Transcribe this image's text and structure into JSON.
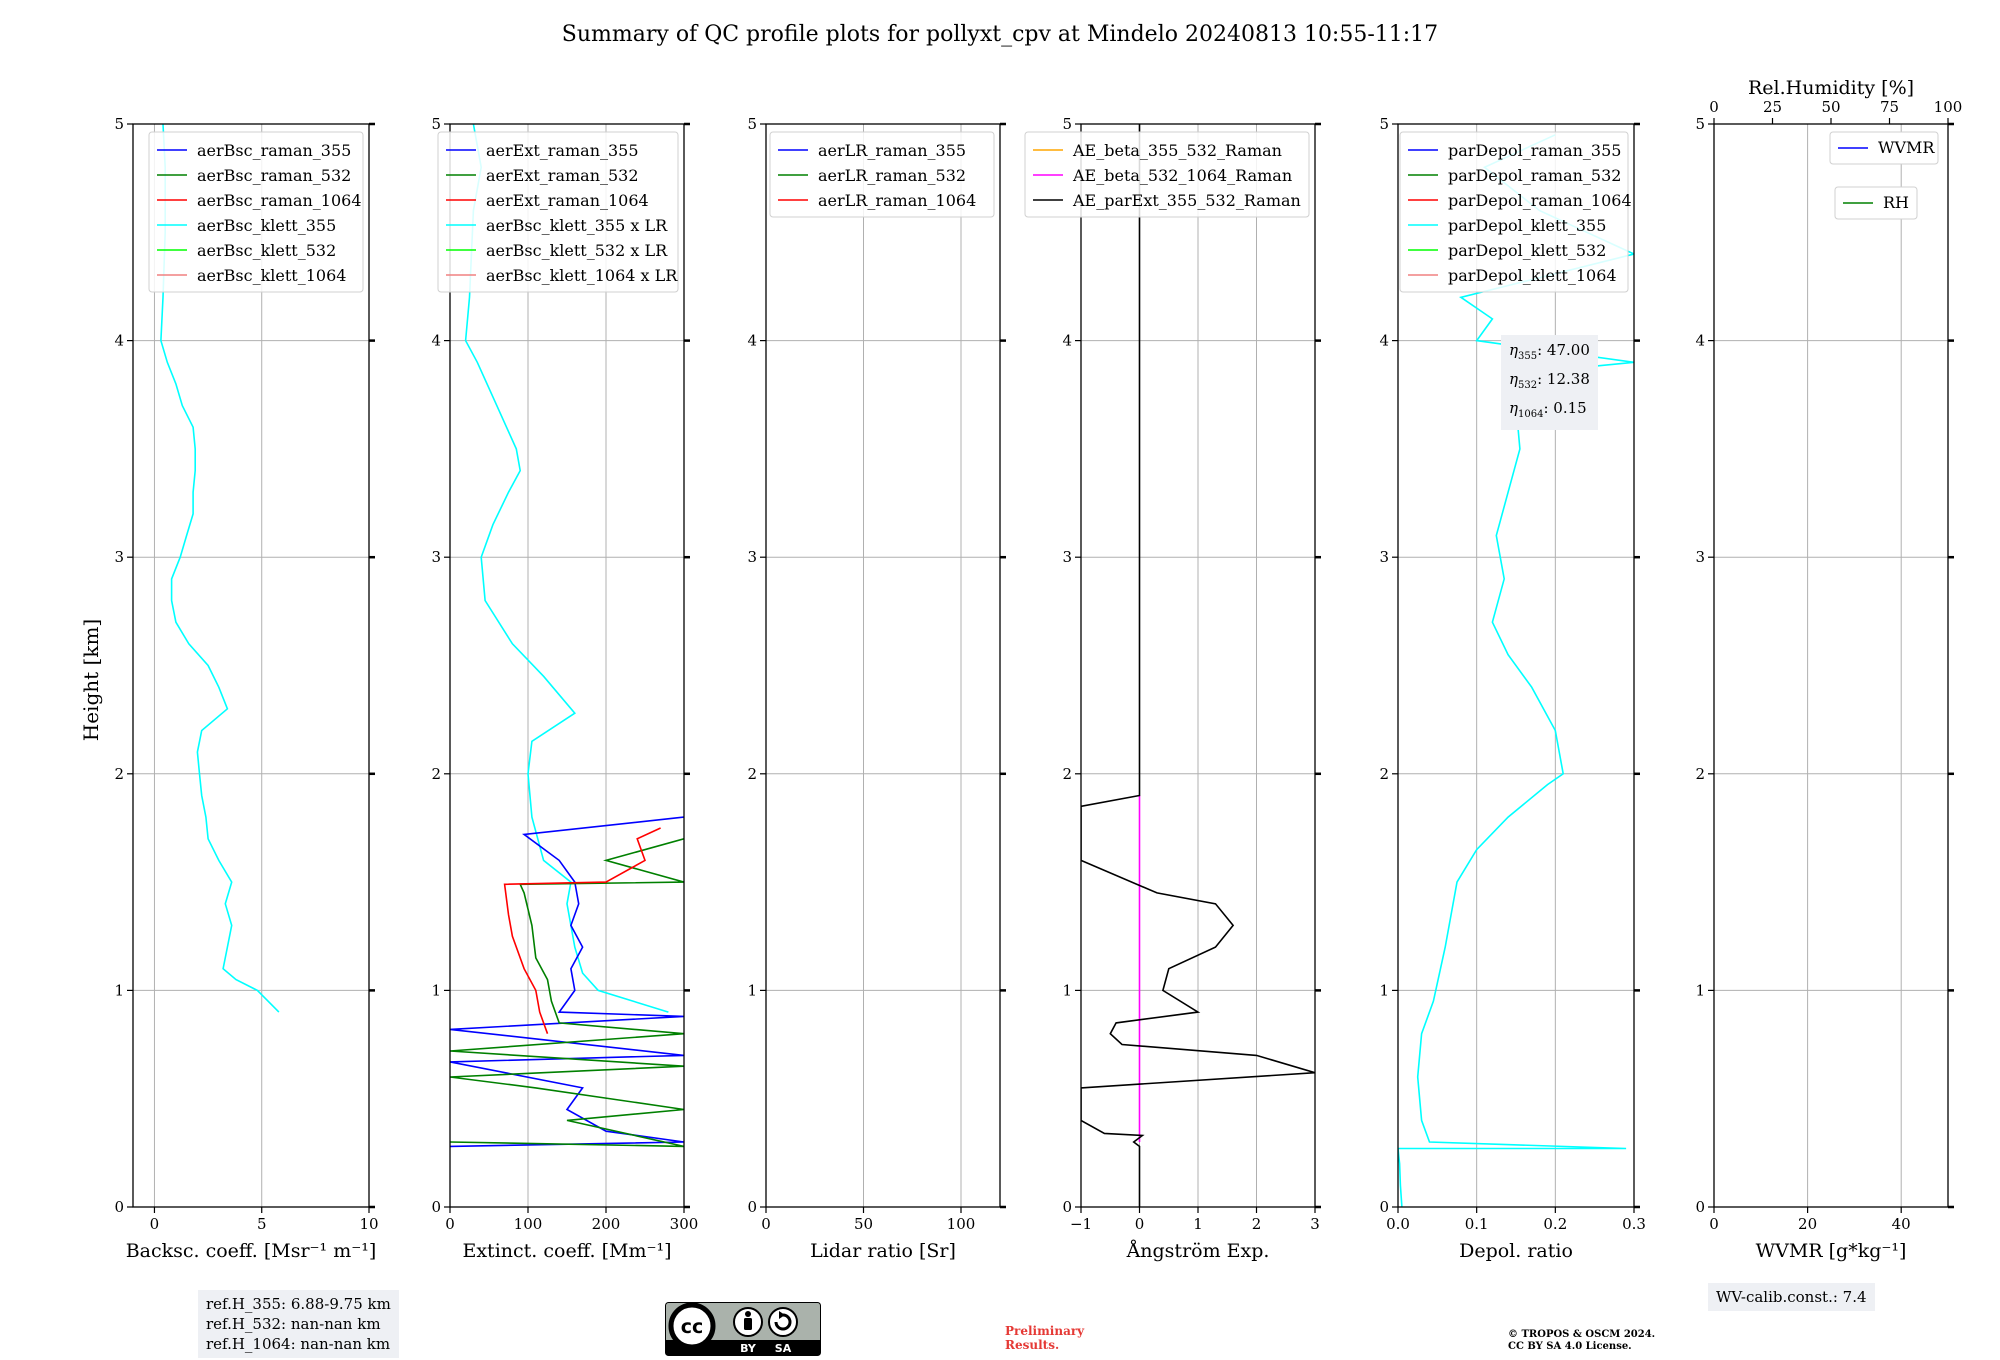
{
  "title": "Summary of QC profile plots for pollyxt_cpv at Mindelo 20240813 10:55-11:17",
  "ylabel": "Height [km]",
  "ref_heights": [
    "ref.H_355: 6.88-9.75 km",
    "ref.H_532: nan-nan km",
    "ref.H_1064: nan-nan km"
  ],
  "wv_calib": "WV-calib.const.: 7.4",
  "eta_values": [
    {
      "sym": "η",
      "sub": "355",
      "val": ": 47.00"
    },
    {
      "sym": "η",
      "sub": "532",
      "val": ": 12.38"
    },
    {
      "sym": "η",
      "sub": "1064",
      "val": ": 0.15"
    }
  ],
  "preliminary": [
    "Preliminary",
    "Results."
  ],
  "license": [
    "© TROPOS & OSCM 2024.",
    "CC BY SA 4.0 License."
  ],
  "cc_logo": {
    "main": "cc",
    "labels": [
      "BY",
      "SA"
    ]
  },
  "colors": {
    "blue": "#0000ff",
    "green": "#008000",
    "red": "#ff0000",
    "cyan": "#00ffff",
    "lime": "#00ff00",
    "salmon": "#f08080",
    "orange": "#ffa500",
    "magenta": "#ff00ff",
    "black": "#000000"
  },
  "chart_data": [
    {
      "type": "line",
      "xlabel": "Backsc. coeff. [Msr⁻¹ m⁻¹]",
      "xlim": [
        -1,
        10
      ],
      "ylim": [
        0,
        5
      ],
      "xticks": [
        0,
        5,
        10
      ],
      "xticklabels": [
        "0",
        "5",
        "10"
      ],
      "yticks": [
        0,
        1,
        2,
        3,
        4,
        5
      ],
      "grid": true,
      "legend": "top-right",
      "legend_entries": [
        {
          "label": "aerBsc_raman_355",
          "color": "blue"
        },
        {
          "label": "aerBsc_raman_532",
          "color": "green"
        },
        {
          "label": "aerBsc_raman_1064",
          "color": "red"
        },
        {
          "label": "aerBsc_klett_355",
          "color": "cyan"
        },
        {
          "label": "aerBsc_klett_532",
          "color": "lime"
        },
        {
          "label": "aerBsc_klett_1064",
          "color": "salmon"
        }
      ],
      "series": [
        {
          "name": "aerBsc_klett_355",
          "color": "cyan",
          "points": [
            [
              5.8,
              0.9
            ],
            [
              4.8,
              1.0
            ],
            [
              3.8,
              1.05
            ],
            [
              3.2,
              1.1
            ],
            [
              3.4,
              1.2
            ],
            [
              3.6,
              1.3
            ],
            [
              3.3,
              1.4
            ],
            [
              3.6,
              1.5
            ],
            [
              3.0,
              1.6
            ],
            [
              2.5,
              1.7
            ],
            [
              2.4,
              1.8
            ],
            [
              2.2,
              1.9
            ],
            [
              2.1,
              2.0
            ],
            [
              2.0,
              2.1
            ],
            [
              2.2,
              2.2
            ],
            [
              3.4,
              2.3
            ],
            [
              3.0,
              2.4
            ],
            [
              2.5,
              2.5
            ],
            [
              1.6,
              2.6
            ],
            [
              1.0,
              2.7
            ],
            [
              0.8,
              2.8
            ],
            [
              0.8,
              2.9
            ],
            [
              1.2,
              3.0
            ],
            [
              1.5,
              3.1
            ],
            [
              1.8,
              3.2
            ],
            [
              1.8,
              3.3
            ],
            [
              1.9,
              3.4
            ],
            [
              1.9,
              3.5
            ],
            [
              1.8,
              3.6
            ],
            [
              1.3,
              3.7
            ],
            [
              1.0,
              3.8
            ],
            [
              0.6,
              3.9
            ],
            [
              0.3,
              4.0
            ],
            [
              0.4,
              4.2
            ],
            [
              0.5,
              4.5
            ],
            [
              0.5,
              4.8
            ],
            [
              0.4,
              5.0
            ]
          ]
        }
      ]
    },
    {
      "type": "line",
      "xlabel": "Extinct. coeff. [Mm⁻¹]",
      "xlim": [
        0,
        300
      ],
      "ylim": [
        0,
        5
      ],
      "xticks": [
        0,
        100,
        200,
        300
      ],
      "xticklabels": [
        "0",
        "100",
        "200",
        "300"
      ],
      "yticks": [
        0,
        1,
        2,
        3,
        4,
        5
      ],
      "grid": true,
      "legend": "top-right",
      "legend_entries": [
        {
          "label": "aerExt_raman_355",
          "color": "blue"
        },
        {
          "label": "aerExt_raman_532",
          "color": "green"
        },
        {
          "label": "aerExt_raman_1064",
          "color": "red"
        },
        {
          "label": "aerBsc_klett_355 x LR",
          "color": "cyan"
        },
        {
          "label": "aerBsc_klett_532 x LR",
          "color": "lime"
        },
        {
          "label": "aerBsc_klett_1064 x LR",
          "color": "salmon"
        }
      ],
      "series": [
        {
          "name": "aerBsc_klett_355 x LR",
          "color": "cyan",
          "points": [
            [
              280,
              0.9
            ],
            [
              190,
              1.0
            ],
            [
              170,
              1.08
            ],
            [
              160,
              1.2
            ],
            [
              150,
              1.4
            ],
            [
              155,
              1.5
            ],
            [
              120,
              1.6
            ],
            [
              105,
              1.8
            ],
            [
              100,
              2.0
            ],
            [
              105,
              2.15
            ],
            [
              160,
              2.28
            ],
            [
              120,
              2.45
            ],
            [
              80,
              2.6
            ],
            [
              45,
              2.8
            ],
            [
              40,
              3.0
            ],
            [
              55,
              3.15
            ],
            [
              75,
              3.3
            ],
            [
              90,
              3.4
            ],
            [
              85,
              3.5
            ],
            [
              60,
              3.7
            ],
            [
              35,
              3.9
            ],
            [
              20,
              4.0
            ],
            [
              25,
              4.2
            ],
            [
              30,
              4.6
            ],
            [
              40,
              4.8
            ],
            [
              30,
              5.0
            ]
          ]
        },
        {
          "name": "aerExt_raman_355",
          "color": "blue",
          "points": [
            [
              0,
              0.28
            ],
            [
              300,
              0.3
            ],
            [
              200,
              0.35
            ],
            [
              150,
              0.45
            ],
            [
              170,
              0.55
            ],
            [
              0,
              0.67
            ],
            [
              300,
              0.7
            ],
            [
              0,
              0.82
            ],
            [
              300,
              0.88
            ],
            [
              140,
              0.9
            ],
            [
              160,
              1.0
            ],
            [
              155,
              1.1
            ],
            [
              170,
              1.2
            ],
            [
              155,
              1.3
            ],
            [
              165,
              1.4
            ],
            [
              160,
              1.5
            ],
            [
              140,
              1.6
            ],
            [
              95,
              1.72
            ],
            [
              300,
              1.8
            ]
          ]
        },
        {
          "name": "aerExt_raman_532",
          "color": "green",
          "points": [
            [
              0,
              0.3
            ],
            [
              300,
              0.28
            ],
            [
              150,
              0.4
            ],
            [
              300,
              0.45
            ],
            [
              110,
              0.55
            ],
            [
              0,
              0.6
            ],
            [
              300,
              0.65
            ],
            [
              0,
              0.72
            ],
            [
              300,
              0.8
            ],
            [
              140,
              0.85
            ],
            [
              130,
              0.95
            ],
            [
              125,
              1.05
            ],
            [
              110,
              1.15
            ],
            [
              105,
              1.3
            ],
            [
              95,
              1.45
            ],
            [
              90,
              1.49
            ],
            [
              300,
              1.5
            ],
            [
              200,
              1.6
            ],
            [
              300,
              1.7
            ]
          ]
        },
        {
          "name": "aerExt_raman_1064",
          "color": "red",
          "points": [
            [
              125,
              0.8
            ],
            [
              115,
              0.9
            ],
            [
              110,
              1.0
            ],
            [
              95,
              1.1
            ],
            [
              80,
              1.25
            ],
            [
              75,
              1.35
            ],
            [
              70,
              1.49
            ],
            [
              200,
              1.5
            ],
            [
              250,
              1.6
            ],
            [
              240,
              1.7
            ],
            [
              270,
              1.75
            ]
          ]
        }
      ]
    },
    {
      "type": "line",
      "xlabel": "Lidar ratio [Sr]",
      "xlim": [
        0,
        120
      ],
      "ylim": [
        0,
        5
      ],
      "xticks": [
        0,
        50,
        100
      ],
      "xticklabels": [
        "0",
        "50",
        "100"
      ],
      "yticks": [
        0,
        1,
        2,
        3,
        4,
        5
      ],
      "grid": true,
      "legend": "top-right",
      "legend_entries": [
        {
          "label": "aerLR_raman_355",
          "color": "blue"
        },
        {
          "label": "aerLR_raman_532",
          "color": "green"
        },
        {
          "label": "aerLR_raman_1064",
          "color": "red"
        }
      ],
      "series": []
    },
    {
      "type": "line",
      "xlabel": "Ångström Exp.",
      "xlim": [
        -1,
        3
      ],
      "ylim": [
        0,
        5
      ],
      "xticks": [
        -1,
        0,
        1,
        2,
        3
      ],
      "xticklabels": [
        "−1",
        "0",
        "1",
        "2",
        "3"
      ],
      "yticks": [
        0,
        1,
        2,
        3,
        4,
        5
      ],
      "grid": true,
      "legend": "top-right",
      "legend_entries": [
        {
          "label": "AE_beta_355_532_Raman",
          "color": "orange"
        },
        {
          "label": "AE_beta_532_1064_Raman",
          "color": "magenta"
        },
        {
          "label": "AE_parExt_355_532_Raman",
          "color": "black"
        }
      ],
      "series": [
        {
          "name": "AE_beta_532_1064_Raman",
          "color": "magenta",
          "points": [
            [
              0,
              0.3
            ],
            [
              0,
              1.9
            ]
          ]
        },
        {
          "name": "AE_parExt_355_532_Raman",
          "color": "black",
          "points": [
            [
              0,
              0.0
            ],
            [
              0,
              0.28
            ],
            [
              -0.1,
              0.3
            ],
            [
              0.05,
              0.33
            ],
            [
              -0.6,
              0.34
            ],
            [
              -1,
              0.4
            ],
            [
              -1,
              0.55
            ],
            [
              3,
              0.62
            ],
            [
              2,
              0.7
            ],
            [
              -0.3,
              0.75
            ],
            [
              -0.5,
              0.8
            ],
            [
              -0.4,
              0.85
            ],
            [
              1.0,
              0.9
            ],
            [
              0.4,
              1.0
            ],
            [
              0.5,
              1.1
            ],
            [
              1.3,
              1.2
            ],
            [
              1.6,
              1.3
            ],
            [
              1.3,
              1.4
            ],
            [
              0.3,
              1.45
            ],
            [
              -1,
              1.6
            ],
            [
              -1,
              1.85
            ],
            [
              0,
              1.9
            ],
            [
              0,
              5.0
            ]
          ]
        }
      ]
    },
    {
      "type": "line",
      "xlabel": "Depol. ratio",
      "xlim": [
        0,
        0.3
      ],
      "ylim": [
        0,
        5
      ],
      "xticks": [
        0,
        0.1,
        0.2,
        0.3
      ],
      "xticklabels": [
        "0.0",
        "0.1",
        "0.2",
        "0.3"
      ],
      "yticks": [
        0,
        1,
        2,
        3,
        4,
        5
      ],
      "grid": true,
      "legend": "top-right",
      "legend_entries": [
        {
          "label": "parDepol_raman_355",
          "color": "blue"
        },
        {
          "label": "parDepol_raman_532",
          "color": "green"
        },
        {
          "label": "parDepol_raman_1064",
          "color": "red"
        },
        {
          "label": "parDepol_klett_355",
          "color": "cyan"
        },
        {
          "label": "parDepol_klett_532",
          "color": "lime"
        },
        {
          "label": "parDepol_klett_1064",
          "color": "salmon"
        }
      ],
      "series": [
        {
          "name": "parDepol_klett_355",
          "color": "cyan",
          "points": [
            [
              0.005,
              0.0
            ],
            [
              0.003,
              0.1
            ],
            [
              0.002,
              0.2
            ],
            [
              0.0,
              0.27
            ],
            [
              0.29,
              0.27
            ],
            [
              0.04,
              0.3
            ],
            [
              0.03,
              0.4
            ],
            [
              0.025,
              0.6
            ],
            [
              0.03,
              0.8
            ],
            [
              0.045,
              0.95
            ],
            [
              0.06,
              1.2
            ],
            [
              0.075,
              1.5
            ],
            [
              0.1,
              1.65
            ],
            [
              0.14,
              1.8
            ],
            [
              0.19,
              1.95
            ],
            [
              0.21,
              2.0
            ],
            [
              0.2,
              2.2
            ],
            [
              0.17,
              2.4
            ],
            [
              0.14,
              2.55
            ],
            [
              0.12,
              2.7
            ],
            [
              0.135,
              2.9
            ],
            [
              0.125,
              3.1
            ],
            [
              0.14,
              3.3
            ],
            [
              0.155,
              3.5
            ],
            [
              0.15,
              3.7
            ],
            [
              0.16,
              3.85
            ],
            [
              0.3,
              3.9
            ],
            [
              0.1,
              4.0
            ],
            [
              0.12,
              4.1
            ],
            [
              0.08,
              4.2
            ],
            [
              0.3,
              4.4
            ],
            [
              0.18,
              4.6
            ],
            [
              0.11,
              4.8
            ],
            [
              0.2,
              4.95
            ]
          ]
        }
      ]
    },
    {
      "type": "line",
      "xlabel": "WVMR [g*kg⁻¹]",
      "xlim": [
        0,
        50
      ],
      "ylim": [
        0,
        5
      ],
      "xticks": [
        0,
        20,
        40
      ],
      "xticklabels": [
        "0",
        "20",
        "40"
      ],
      "yticks": [
        0,
        1,
        2,
        3,
        4,
        5
      ],
      "top_axis": {
        "label": "Rel.Humidity [%]",
        "lim": [
          0,
          100
        ],
        "ticks": [
          0,
          25,
          50,
          75,
          100
        ],
        "ticklabels": [
          "0",
          "25",
          "50",
          "75",
          "100"
        ]
      },
      "grid": true,
      "legend": "top-right",
      "legend_entries": [
        {
          "label": "WVMR",
          "color": "blue"
        },
        {
          "label": "RH",
          "color": "green"
        }
      ],
      "series": []
    }
  ]
}
